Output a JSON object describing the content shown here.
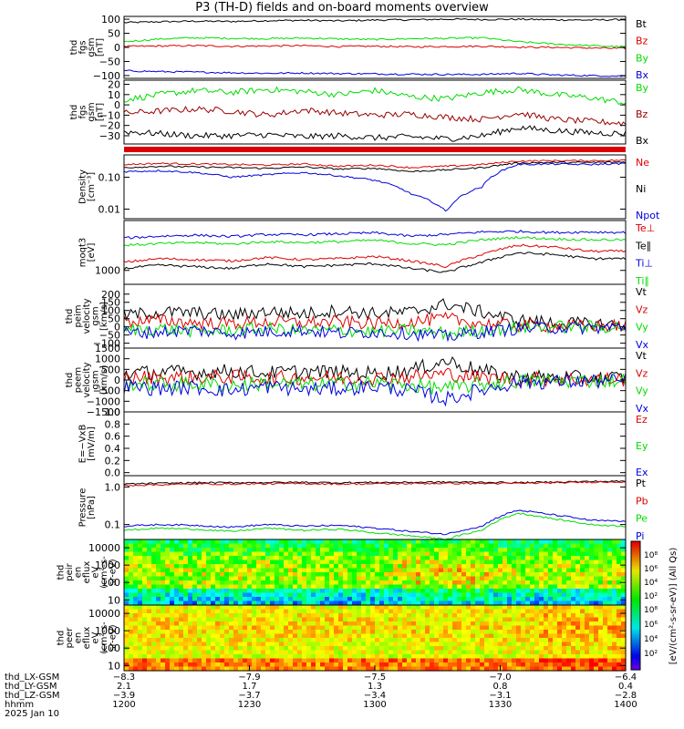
{
  "title": "P3 (TH-D) fields and on-board moments overview",
  "colors": {
    "black": "#000000",
    "red": "#dd0000",
    "darkred": "#9a0000",
    "green": "#00dd00",
    "blue": "#0000dd"
  },
  "chart_data": [
    {
      "type": "line",
      "ylabel": [
        "thd",
        "fgs",
        "gsm",
        "[nT]"
      ],
      "ylim": [
        -110,
        110
      ],
      "yticks": [
        "100",
        "50",
        "0",
        "−50",
        "−100"
      ],
      "yticks_values": [
        100,
        50,
        0,
        -50,
        -100
      ],
      "series": [
        {
          "name": "Bt",
          "color": "#000000",
          "values": [
            88,
            91,
            93,
            92,
            95,
            96,
            94,
            97,
            98,
            100,
            99,
            100,
            98,
            97,
            99
          ]
        },
        {
          "name": "Bz",
          "color": "#dd0000",
          "values": [
            3,
            5,
            6,
            4,
            5,
            6,
            3,
            4,
            2,
            3,
            4,
            1,
            0,
            -2,
            -4
          ]
        },
        {
          "name": "By",
          "color": "#00dd00",
          "values": [
            20,
            30,
            34,
            32,
            31,
            33,
            30,
            28,
            31,
            32,
            34,
            20,
            12,
            6,
            2
          ]
        },
        {
          "name": "Bx",
          "color": "#0000dd",
          "values": [
            -83,
            -86,
            -88,
            -90,
            -92,
            -91,
            -93,
            -94,
            -95,
            -96,
            -96,
            -92,
            -98,
            -100,
            -102
          ]
        }
      ]
    },
    {
      "type": "line",
      "ylabel": [
        "thd",
        "fgs",
        "gsm",
        "[nT]"
      ],
      "ylim": [
        -38,
        24
      ],
      "yticks": [
        "20",
        "10",
        "0",
        "−10",
        "−20",
        "−30"
      ],
      "yticks_values": [
        20,
        10,
        0,
        -10,
        -20,
        -30
      ],
      "series": [
        {
          "name": "By",
          "color": "#00dd00",
          "values": [
            5,
            10,
            14,
            12,
            15,
            13,
            10,
            14,
            8,
            6,
            12,
            15,
            10,
            7,
            2
          ]
        },
        {
          "name": "Bz",
          "color": "#9a0000",
          "values": [
            -8,
            -6,
            -4,
            -6,
            -10,
            -5,
            -8,
            -10,
            -9,
            -12,
            -14,
            -8,
            -14,
            -16,
            -18
          ]
        },
        {
          "name": "Bx",
          "color": "#000000",
          "values": [
            -26,
            -28,
            -30,
            -30,
            -29,
            -31,
            -30,
            -32,
            -31,
            -33,
            -30,
            -22,
            -25,
            -27,
            -28
          ]
        }
      ]
    },
    {
      "type": "line",
      "ylabel": [
        "Density",
        "[cm⁻³]"
      ],
      "ylim": [
        0.005,
        0.5
      ],
      "yscale": "log",
      "yticks": [
        "0.10",
        "0.01"
      ],
      "yticks_values": [
        0.1,
        0.01
      ],
      "series": [
        {
          "name": "Ne",
          "color": "#dd0000",
          "values": [
            0.25,
            0.27,
            0.26,
            0.25,
            0.24,
            0.26,
            0.22,
            0.24,
            0.2,
            0.22,
            0.25,
            0.32,
            0.33,
            0.33,
            0.34
          ]
        },
        {
          "name": "Ni",
          "color": "#000000",
          "values": [
            0.2,
            0.22,
            0.21,
            0.2,
            0.19,
            0.21,
            0.18,
            0.19,
            0.15,
            0.17,
            0.2,
            0.28,
            0.29,
            0.29,
            0.3
          ]
        },
        {
          "name": "Npot",
          "color": "#0000dd",
          "values": [
            0.15,
            0.16,
            0.14,
            0.1,
            0.12,
            0.14,
            0.11,
            0.08,
            0.03,
            0.008,
            0.05,
            0.25,
            0.26,
            0.25,
            0.27
          ]
        }
      ]
    },
    {
      "type": "line",
      "ylabel": [
        "moqt3",
        "[eV]"
      ],
      "ylim": [
        500,
        12000
      ],
      "yscale": "log",
      "yticks": [
        "1000"
      ],
      "yticks_values": [
        1000
      ],
      "series": [
        {
          "name": "Te⊥",
          "color": "#dd0000",
          "values": [
            1500,
            1800,
            1700,
            1600,
            1900,
            1700,
            1800,
            2000,
            1600,
            1200,
            2200,
            3500,
            3200,
            2600,
            2600
          ]
        },
        {
          "name": "Te∥",
          "color": "#000000",
          "values": [
            1100,
            1300,
            1200,
            1100,
            1400,
            1200,
            1300,
            1400,
            1100,
            900,
            1500,
            2400,
            2200,
            1800,
            1800
          ]
        },
        {
          "name": "Ti⊥",
          "color": "#0000dd",
          "values": [
            5000,
            5500,
            5800,
            5400,
            6000,
            5900,
            6200,
            6500,
            5500,
            6000,
            6800,
            7000,
            6600,
            6800,
            6600
          ]
        },
        {
          "name": "Ti∥",
          "color": "#00dd00",
          "values": [
            3500,
            3800,
            4000,
            3700,
            4200,
            4000,
            4200,
            4500,
            3800,
            3600,
            4600,
            5200,
            4800,
            4600,
            4600
          ]
        }
      ]
    },
    {
      "type": "line",
      "ylabel": [
        "thd",
        "peim",
        "velocity",
        "gsm",
        "[km/s]"
      ],
      "ylim": [
        -130,
        260
      ],
      "yticks": [
        "200",
        "150",
        "100",
        "50",
        "0",
        "−50",
        "−100"
      ],
      "yticks_values": [
        200,
        150,
        100,
        50,
        0,
        -50,
        -100
      ],
      "series": [
        {
          "name": "Vt",
          "color": "#000000",
          "values": [
            70,
            90,
            85,
            70,
            95,
            80,
            100,
            80,
            90,
            140,
            90,
            40,
            25,
            18,
            15
          ]
        },
        {
          "name": "Vz",
          "color": "#dd0000",
          "values": [
            30,
            40,
            25,
            20,
            30,
            25,
            30,
            20,
            30,
            50,
            20,
            10,
            5,
            5,
            5
          ]
        },
        {
          "name": "Vy",
          "color": "#00dd00",
          "values": [
            -20,
            -10,
            -30,
            -20,
            -10,
            -25,
            -20,
            -30,
            -20,
            -40,
            -20,
            -5,
            0,
            0,
            0
          ]
        },
        {
          "name": "Vx",
          "color": "#0000dd",
          "values": [
            -40,
            -30,
            -20,
            -40,
            -30,
            -20,
            -40,
            -30,
            -40,
            -60,
            -30,
            -10,
            -5,
            -5,
            -3
          ]
        }
      ]
    },
    {
      "type": "line",
      "ylabel": [
        "thd",
        "peem",
        "velocity",
        "gsm",
        "[km/s]"
      ],
      "ylim": [
        -1500,
        1500
      ],
      "yticks": [
        "1500",
        "1000",
        "500",
        "0",
        "−500",
        "−1000",
        "−1500"
      ],
      "yticks_values": [
        1500,
        1000,
        500,
        0,
        -500,
        -1000,
        -1500
      ],
      "series": [
        {
          "name": "Vt",
          "color": "#000000",
          "values": [
            300,
            380,
            350,
            420,
            320,
            400,
            350,
            300,
            450,
            900,
            400,
            150,
            120,
            100,
            100
          ]
        },
        {
          "name": "Vz",
          "color": "#dd0000",
          "values": [
            100,
            120,
            100,
            150,
            80,
            120,
            100,
            80,
            150,
            300,
            100,
            50,
            40,
            30,
            30
          ]
        },
        {
          "name": "Vy",
          "color": "#00dd00",
          "values": [
            -150,
            -200,
            -180,
            -250,
            -150,
            -220,
            -180,
            -150,
            -250,
            -400,
            -200,
            -50,
            -40,
            -30,
            -30
          ]
        },
        {
          "name": "Vx",
          "color": "#0000dd",
          "values": [
            -300,
            -400,
            -350,
            -500,
            -300,
            -450,
            -400,
            -300,
            -500,
            -900,
            -450,
            -100,
            -80,
            -60,
            -60
          ]
        }
      ]
    },
    {
      "type": "line",
      "ylabel": [
        "E=−VxB",
        "[mV/m]"
      ],
      "ylim": [
        -0.05,
        1.0
      ],
      "yticks": [
        "1.0",
        "0.8",
        "0.6",
        "0.4",
        "0.2",
        "0.0"
      ],
      "yticks_values": [
        1.0,
        0.8,
        0.6,
        0.4,
        0.2,
        0.0
      ],
      "series": [
        {
          "name": "Ez",
          "color": "#dd0000",
          "values": []
        },
        {
          "name": "Ey",
          "color": "#00dd00",
          "values": []
        },
        {
          "name": "Ex",
          "color": "#0000dd",
          "values": []
        }
      ]
    },
    {
      "type": "line",
      "ylabel": [
        "Pressure",
        "[nPa]"
      ],
      "ylim": [
        0.04,
        2.0
      ],
      "yscale": "log",
      "yticks": [
        "1.0",
        "0.1"
      ],
      "yticks_values": [
        1.0,
        0.1
      ],
      "series": [
        {
          "name": "Pt",
          "color": "#000000",
          "values": [
            1.2,
            1.25,
            1.3,
            1.3,
            1.32,
            1.33,
            1.3,
            1.32,
            1.33,
            1.35,
            1.34,
            1.3,
            1.35,
            1.4,
            1.42
          ]
        },
        {
          "name": "Pb",
          "color": "#dd0000",
          "values": [
            1.1,
            1.15,
            1.2,
            1.2,
            1.22,
            1.23,
            1.2,
            1.22,
            1.23,
            1.25,
            1.24,
            1.25,
            1.3,
            1.35,
            1.38
          ]
        },
        {
          "name": "Pe",
          "color": "#00dd00",
          "values": [
            0.07,
            0.08,
            0.075,
            0.065,
            0.08,
            0.07,
            0.075,
            0.06,
            0.05,
            0.04,
            0.07,
            0.2,
            0.14,
            0.1,
            0.09
          ]
        },
        {
          "name": "Pi",
          "color": "#0000dd",
          "values": [
            0.09,
            0.1,
            0.095,
            0.085,
            0.1,
            0.09,
            0.095,
            0.08,
            0.065,
            0.055,
            0.09,
            0.24,
            0.18,
            0.13,
            0.12
          ]
        }
      ]
    },
    {
      "type": "heatmap",
      "ylabel": [
        "thd",
        "peir",
        "en",
        "eflux",
        "eV",
        "(cm²-s-",
        "sr-eV)"
      ],
      "yscale": "log",
      "ylim": [
        5,
        30000
      ],
      "yticks": [
        "10000",
        "1000",
        "100",
        "10"
      ],
      "yticks_values": [
        10000,
        1000,
        100,
        10
      ]
    },
    {
      "type": "heatmap",
      "ylabel": [
        "thd",
        "peer",
        "en",
        "eflux",
        "eV",
        "(cm²-s-",
        "sr-eV)"
      ],
      "yscale": "log",
      "ylim": [
        5,
        30000
      ],
      "yticks": [
        "10000",
        "1000",
        "100",
        "10"
      ],
      "yticks_values": [
        10000,
        1000,
        100,
        10
      ]
    }
  ],
  "colorbar": {
    "ticks": [
      "10⁸",
      "10⁶",
      "10⁴",
      "10²"
    ],
    "ticks2": [
      "10⁸",
      "10⁶",
      "10⁴",
      "10²"
    ],
    "label": "[eV/(cm²-s-sr-eV)] (All Qs)"
  },
  "xaxis": {
    "rows": [
      {
        "name": "thd_LX-GSM",
        "values": [
          "−8.3",
          "−7.9",
          "−7.5",
          "−7.0",
          "−6.4"
        ]
      },
      {
        "name": "thd_LY-GSM",
        "values": [
          "2.1",
          "1.7",
          "1.3",
          "0.8",
          "0.4"
        ]
      },
      {
        "name": "thd_LZ-GSM",
        "values": [
          "−3.9",
          "−3.7",
          "−3.4",
          "−3.1",
          "−2.8"
        ]
      },
      {
        "name": "hhmm",
        "values": [
          "1200",
          "1230",
          "1300",
          "1330",
          "1400"
        ]
      }
    ],
    "date": "2025 Jan 10"
  }
}
